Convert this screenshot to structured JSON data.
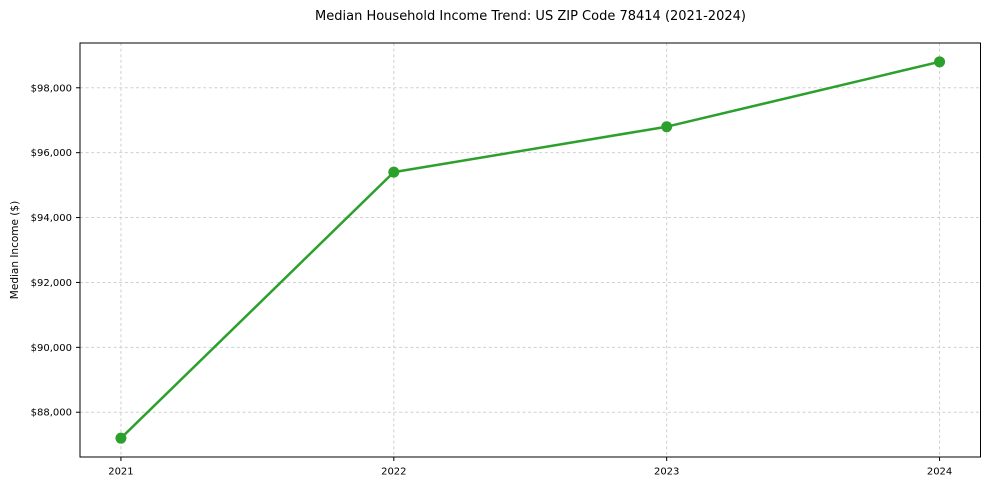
{
  "figure": {
    "background": "#ffffff"
  },
  "chart_data": {
    "type": "line",
    "title": "Median Household Income Trend: US ZIP Code 78414 (2021-2024)",
    "xlabel": "",
    "ylabel": "Median Income ($)",
    "x": [
      2021,
      2022,
      2023,
      2024
    ],
    "xtick_labels": [
      "2021",
      "2022",
      "2023",
      "2024"
    ],
    "values": [
      87200,
      95400,
      96800,
      98800
    ],
    "ytick_values": [
      88000,
      90000,
      92000,
      94000,
      96000,
      98000
    ],
    "ytick_labels": [
      "$88,000",
      "$90,000",
      "$92,000",
      "$94,000",
      "$96,000",
      "$98,000"
    ],
    "xlim": [
      2020.85,
      2024.15
    ],
    "ylim": [
      86620,
      99380
    ],
    "grid": true,
    "legend": "none",
    "line_color": "#2ca02c",
    "marker": "circle",
    "grid_color": "#d0d0d0",
    "axis_color": "#000000",
    "tick_label_color": "#000000"
  }
}
